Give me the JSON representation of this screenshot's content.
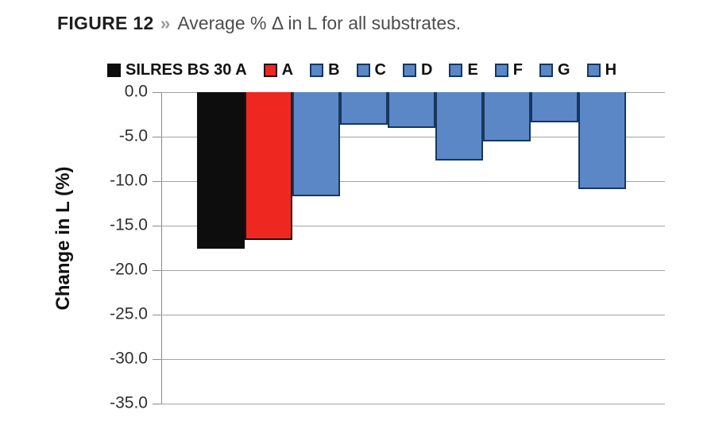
{
  "figure": {
    "label": "FIGURE 12",
    "separator": "»",
    "subtitle": "Average % Δ in L for all substrates."
  },
  "chart_data": {
    "type": "bar",
    "title": "Average % Δ in L for all substrates",
    "xlabel": "",
    "ylabel": "Change in L (%)",
    "ylim": [
      -35,
      0
    ],
    "ytick_step": 5,
    "ytick_labels": [
      "0.0",
      "-5.0",
      "-10.0",
      "-15.0",
      "-20.0",
      "-25.0",
      "-30.0",
      "-35.0"
    ],
    "grid": true,
    "legend_position": "top",
    "colors": {
      "blue_fill": "#5b87c7",
      "blue_border": "#17375e",
      "red_fill": "#ee2821",
      "red_border": "#20100f",
      "black_fill": "#0d0d0d",
      "black_border": "#0d0d0d",
      "gridline": "#a3a3a3"
    },
    "series": [
      {
        "name": "SILRES BS 30 A",
        "value": -17.6,
        "fill": "#0d0d0d",
        "border": "#0d0d0d"
      },
      {
        "name": "A",
        "value": -16.6,
        "fill": "#ee2821",
        "border": "#20100f"
      },
      {
        "name": "B",
        "value": -11.7,
        "fill": "#5b87c7",
        "border": "#17375e"
      },
      {
        "name": "C",
        "value": -3.7,
        "fill": "#5b87c7",
        "border": "#17375e"
      },
      {
        "name": "D",
        "value": -4.0,
        "fill": "#5b87c7",
        "border": "#17375e"
      },
      {
        "name": "E",
        "value": -7.7,
        "fill": "#5b87c7",
        "border": "#17375e"
      },
      {
        "name": "F",
        "value": -5.5,
        "fill": "#5b87c7",
        "border": "#17375e"
      },
      {
        "name": "G",
        "value": -3.4,
        "fill": "#5b87c7",
        "border": "#17375e"
      },
      {
        "name": "H",
        "value": -10.9,
        "fill": "#5b87c7",
        "border": "#17375e"
      }
    ]
  }
}
